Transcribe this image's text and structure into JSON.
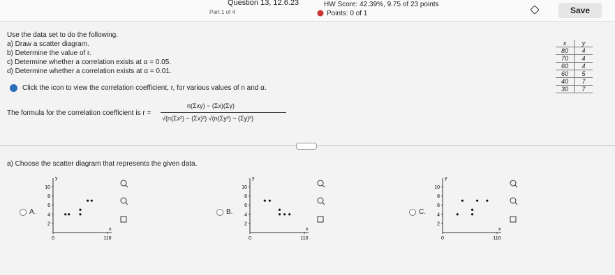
{
  "header": {
    "question": "Question 13, 12.6.23",
    "part": "Part 1 of 4",
    "hw_score": "HW Score: 42.39%, 9.75 of 23 points",
    "points": "Points: 0 of 1",
    "save": "Save"
  },
  "instructions": {
    "intro": "Use the data set to do the following.",
    "items": [
      "a) Draw a scatter diagram.",
      "b) Determine the value of r.",
      "c) Determine whether a correlation exists at α = 0.05.",
      "d) Determine whether a correlation exists at α = 0.01."
    ],
    "help": "Click the icon to view the correlation coefficient, r, for various values of n and α.",
    "formula_lead": "The formula for the correlation coefficient is r =",
    "formula_numerator": "n(Σxy) − (Σx)(Σy)",
    "formula_denominator": "√(n(Σx²) − (Σx)²) √(n(Σy²) − (Σy)²)"
  },
  "table": {
    "headers": [
      "x",
      "y"
    ],
    "rows": [
      [
        80,
        4
      ],
      [
        70,
        4
      ],
      [
        60,
        4
      ],
      [
        60,
        5
      ],
      [
        40,
        7
      ],
      [
        30,
        7
      ]
    ]
  },
  "question": "a) Choose the scatter diagram that represents the given data.",
  "plot": {
    "x_label": "x",
    "y_label": "y",
    "xlim": [
      0,
      110
    ],
    "ylim": [
      0,
      11
    ],
    "yticks": [
      10,
      8,
      6,
      4,
      2
    ],
    "xticks": [
      0,
      110
    ]
  },
  "options": [
    {
      "label": "A.",
      "points": [
        [
          70,
          7
        ],
        [
          78,
          7
        ],
        [
          25,
          4
        ],
        [
          32,
          4
        ],
        [
          55,
          4
        ],
        [
          55,
          5
        ]
      ]
    },
    {
      "label": "B.",
      "points": [
        [
          30,
          7
        ],
        [
          40,
          7
        ],
        [
          60,
          4
        ],
        [
          60,
          5
        ],
        [
          70,
          4
        ],
        [
          80,
          4
        ]
      ]
    },
    {
      "label": "C.",
      "points": [
        [
          40,
          7
        ],
        [
          70,
          7
        ],
        [
          90,
          7
        ],
        [
          30,
          4
        ],
        [
          60,
          4
        ],
        [
          60,
          5
        ]
      ]
    }
  ]
}
